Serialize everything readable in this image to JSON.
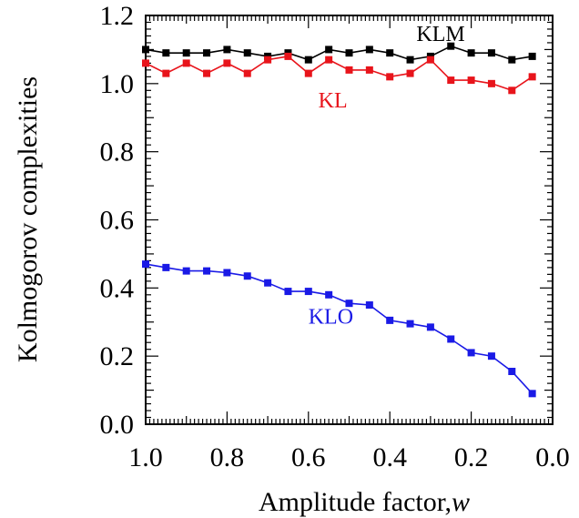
{
  "chart_data": {
    "type": "line",
    "xlabel": "Amplitude factor,",
    "xlabel_var": "w",
    "ylabel": "Kolmogorov complexities",
    "xlim": [
      1.0,
      0.0
    ],
    "ylim": [
      0.0,
      1.2
    ],
    "x_reversed": true,
    "grid": false,
    "xticks": [
      "1.0",
      "0.8",
      "0.6",
      "0.4",
      "0.2",
      "0.0"
    ],
    "yticks": [
      "0.0",
      "0.2",
      "0.4",
      "0.6",
      "0.8",
      "1.0",
      "1.2"
    ],
    "x": [
      1.0,
      0.95,
      0.9,
      0.85,
      0.8,
      0.75,
      0.7,
      0.65,
      0.6,
      0.55,
      0.5,
      0.45,
      0.4,
      0.35,
      0.3,
      0.25,
      0.2,
      0.15,
      0.1,
      0.05
    ],
    "series": [
      {
        "name": "KLM",
        "color": "#000000",
        "values": [
          1.1,
          1.09,
          1.09,
          1.09,
          1.1,
          1.09,
          1.08,
          1.09,
          1.07,
          1.1,
          1.09,
          1.1,
          1.09,
          1.07,
          1.08,
          1.11,
          1.09,
          1.09,
          1.07,
          1.08
        ]
      },
      {
        "name": "KL",
        "color": "#e8141b",
        "values": [
          1.06,
          1.03,
          1.06,
          1.03,
          1.06,
          1.03,
          1.07,
          1.08,
          1.03,
          1.07,
          1.04,
          1.04,
          1.02,
          1.03,
          1.07,
          1.01,
          1.01,
          1.0,
          0.98,
          1.02
        ]
      },
      {
        "name": "KLO",
        "color": "#1a1ae6",
        "values": [
          0.47,
          0.46,
          0.45,
          0.45,
          0.445,
          0.435,
          0.415,
          0.39,
          0.39,
          0.38,
          0.355,
          0.35,
          0.305,
          0.295,
          0.285,
          0.25,
          0.21,
          0.2,
          0.155,
          0.09
        ]
      }
    ]
  }
}
